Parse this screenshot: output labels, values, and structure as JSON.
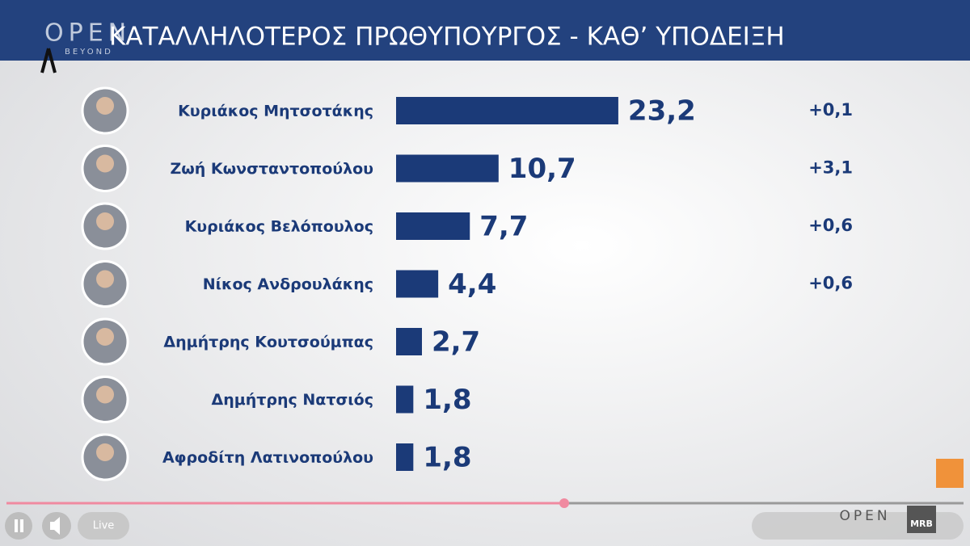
{
  "chart_data": {
    "type": "bar",
    "orientation": "horizontal",
    "title": "ΚΑΤΑΛΛΗΛΟΤΕΡΟΣ ΠΡΩΘΥΠΟΥΡΓΟΣ - ΚΑΘ’ ΥΠΟΔΕΙΞΗ",
    "categories": [
      "Κυριάκος Μητσοτάκης",
      "Ζωή Κωνσταντοπούλου",
      "Κυριάκος Βελόπουλος",
      "Νίκος Ανδρουλάκης",
      "Δημήτρης Κουτσούμπας",
      "Δημήτρης Νατσιός",
      "Αφροδίτη Λατινοπούλου"
    ],
    "values": [
      23.2,
      10.7,
      7.7,
      4.4,
      2.7,
      1.8,
      1.8
    ],
    "value_labels": [
      "23,2",
      "10,7",
      "7,7",
      "4,4",
      "2,7",
      "1,8",
      "1,8"
    ],
    "color": "#1b3a78",
    "changes": {
      "values": [
        0.1,
        3.1,
        0.6,
        0.6,
        null,
        null,
        null
      ],
      "value_labels": [
        "+0,1",
        "+3,1",
        "+0,6",
        "+0,6",
        null,
        null,
        null
      ]
    }
  },
  "branding": {
    "logo": "OPEN",
    "logo_sub": "BEYOND",
    "corner_logo": "MRB"
  },
  "player": {
    "live": "Live"
  }
}
